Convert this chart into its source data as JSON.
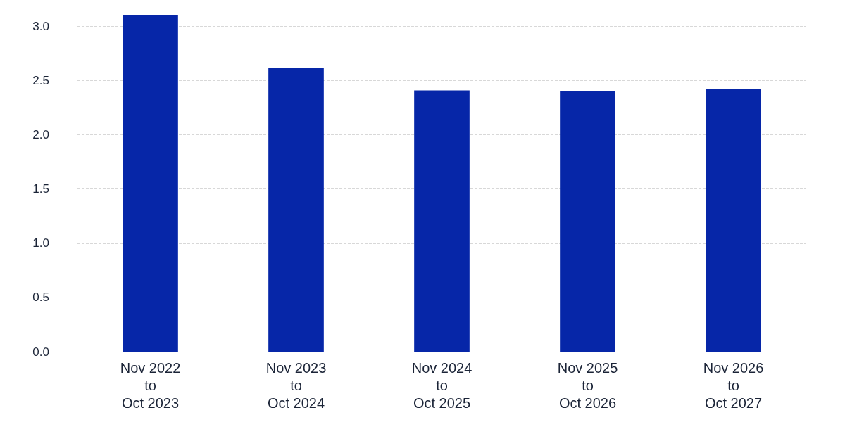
{
  "chart_data": {
    "type": "bar",
    "categories": [
      "Nov 2022\nto\nOct 2023",
      "Nov 2023\nto\nOct 2024",
      "Nov 2024\nto\nOct 2025",
      "Nov 2025\nto\nOct 2026",
      "Nov 2026\nto\nOct 2027"
    ],
    "values": [
      3.1,
      2.62,
      2.41,
      2.4,
      2.42
    ],
    "color": "#0626a8",
    "ylim": [
      0,
      3.1
    ],
    "yticks": [
      {
        "value": 0,
        "label": "0.0"
      },
      {
        "value": 0.5,
        "label": "0.5"
      },
      {
        "value": 1,
        "label": "1.0"
      },
      {
        "value": 1.5,
        "label": "1.5"
      },
      {
        "value": 2,
        "label": "2.0"
      },
      {
        "value": 2.5,
        "label": "2.5"
      },
      {
        "value": 3,
        "label": "3.0"
      }
    ],
    "grid": "y"
  }
}
